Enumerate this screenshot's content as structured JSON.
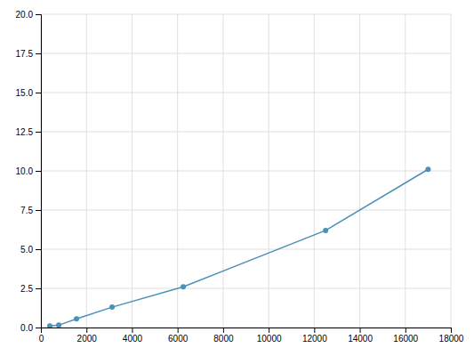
{
  "chart_data": {
    "type": "line",
    "x": [
      391,
      781,
      1563,
      3125,
      6250,
      12500,
      17000
    ],
    "values": [
      0.1,
      0.15,
      0.55,
      1.3,
      2.6,
      6.2,
      10.1
    ],
    "color": "#4a90b8",
    "marker": "circle",
    "xlim": [
      0,
      18000
    ],
    "ylim": [
      0,
      20.0
    ],
    "xticks": [
      0,
      2000,
      4000,
      6000,
      8000,
      10000,
      12000,
      14000,
      16000,
      18000
    ],
    "yticks": [
      {
        "value": 0.0,
        "label": "0.0"
      },
      2.5,
      {
        "value": 5.0,
        "label": "5.0"
      },
      7.5,
      {
        "value": 10.0,
        "label": "10.0"
      },
      12.5,
      {
        "value": 15.0,
        "label": "15.0"
      },
      17.5,
      {
        "value": 20.0,
        "label": "20.0"
      }
    ],
    "grid": true
  }
}
